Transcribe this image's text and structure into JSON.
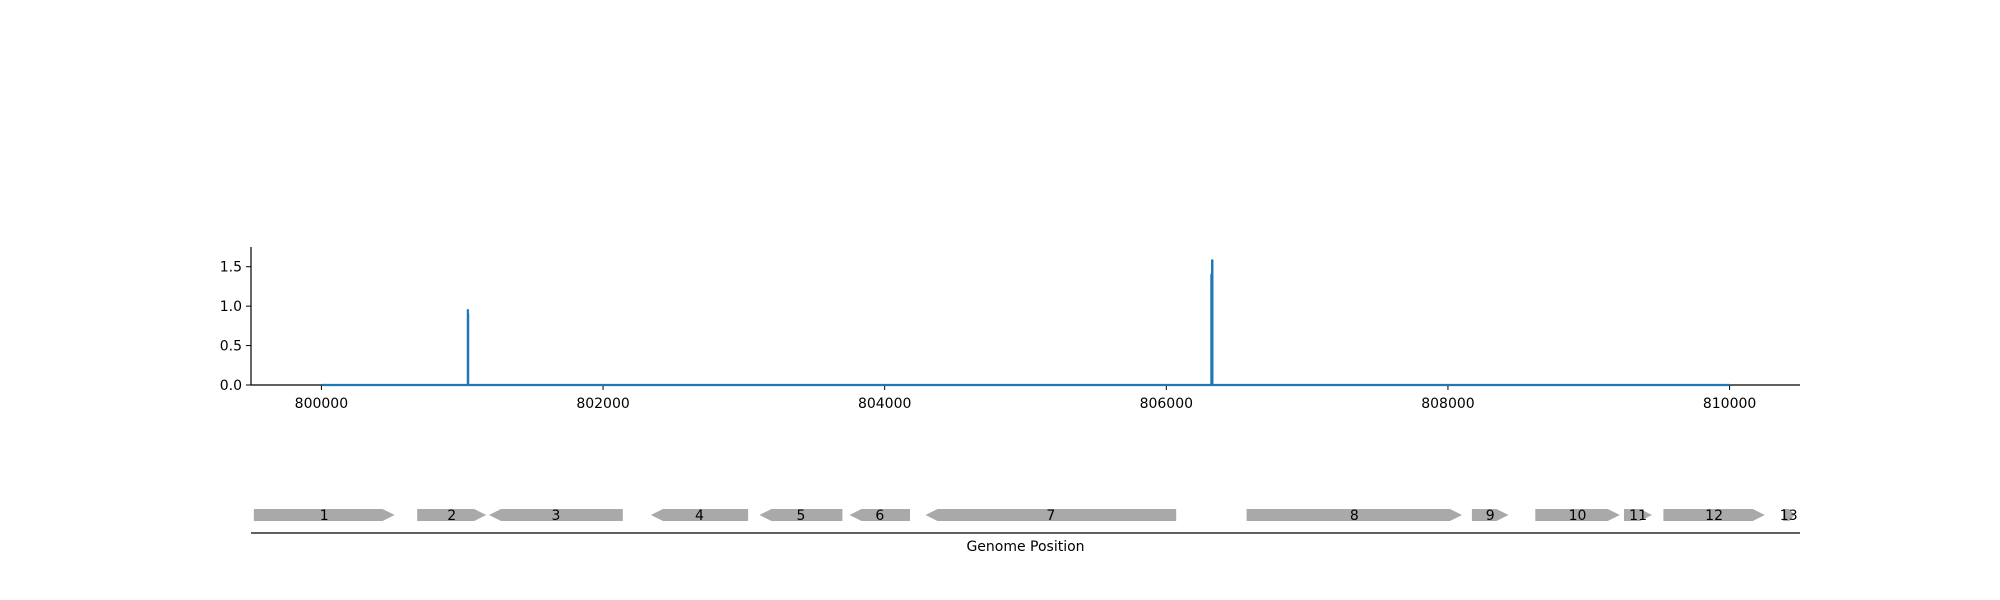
{
  "colors": {
    "line": "#1f77b4",
    "axis": "#000000",
    "gene": "#a9a9a9",
    "background": "#ffffff"
  },
  "chart_data": [
    {
      "type": "line",
      "xlim": [
        799500,
        810500
      ],
      "ylim": [
        0,
        1.75
      ],
      "x_ticks": [
        800000,
        802000,
        804000,
        806000,
        808000,
        810000
      ],
      "x_tick_labels": [
        "800000",
        "802000",
        "804000",
        "806000",
        "808000",
        "810000"
      ],
      "y_ticks": [
        0.0,
        0.5,
        1.0,
        1.5
      ],
      "y_tick_labels": [
        "0.0",
        "0.5",
        "1.0",
        "1.5"
      ],
      "grid": false,
      "series": [
        {
          "x": [
            800000,
            801040,
            801040,
            801040,
            801042,
            801042,
            806320,
            806320,
            806320,
            806325,
            806325,
            806327,
            806327,
            810000
          ],
          "y": [
            0,
            0,
            0.95,
            0.9,
            0.9,
            0,
            0,
            1.3,
            1.4,
            1.4,
            1.58,
            1.58,
            0,
            0
          ]
        }
      ]
    },
    {
      "type": "gene_track",
      "xlabel": "Genome Position",
      "xlim": [
        799500,
        810500
      ],
      "genes": [
        {
          "label": "1",
          "start": 799520,
          "end": 800520,
          "strand": "+"
        },
        {
          "label": "2",
          "start": 800680,
          "end": 801170,
          "strand": "+"
        },
        {
          "label": "3",
          "start": 801190,
          "end": 802140,
          "strand": "-"
        },
        {
          "label": "4",
          "start": 802340,
          "end": 803030,
          "strand": "-"
        },
        {
          "label": "5",
          "start": 803110,
          "end": 803700,
          "strand": "-"
        },
        {
          "label": "6",
          "start": 803750,
          "end": 804180,
          "strand": "-"
        },
        {
          "label": "7",
          "start": 804290,
          "end": 806070,
          "strand": "-"
        },
        {
          "label": "8",
          "start": 806570,
          "end": 808100,
          "strand": "+"
        },
        {
          "label": "9",
          "start": 808170,
          "end": 808430,
          "strand": "+"
        },
        {
          "label": "10",
          "start": 808620,
          "end": 809220,
          "strand": "+"
        },
        {
          "label": "11",
          "start": 809250,
          "end": 809450,
          "strand": "+"
        },
        {
          "label": "12",
          "start": 809530,
          "end": 810250,
          "strand": "+"
        },
        {
          "label": "13",
          "start": 810380,
          "end": 810460,
          "strand": "+"
        }
      ]
    }
  ]
}
